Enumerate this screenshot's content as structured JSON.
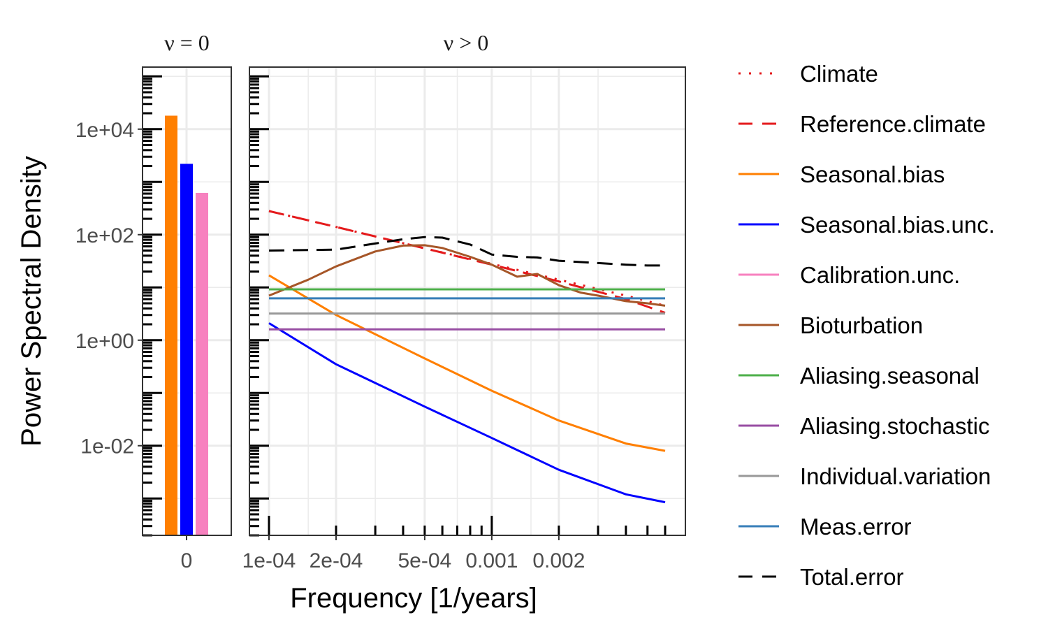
{
  "chart_data": {
    "type": "line",
    "ylabel": "Power Spectral Density",
    "xlabel": "Frequency [1/years]",
    "y_scale": "log10",
    "x_scale": "log10",
    "ylim": [
      0.0002,
      150000
    ],
    "grid": true,
    "legend_position": "right",
    "y_ticks": [
      {
        "value": 10000,
        "label": "1e+04"
      },
      {
        "value": 100,
        "label": "1e+02"
      },
      {
        "value": 1,
        "label": "1e+00"
      },
      {
        "value": 0.01,
        "label": "1e-02"
      }
    ],
    "panels": [
      {
        "strip": "ν = 0",
        "type": "bar",
        "x_ticks": [
          {
            "value": 0,
            "label": "0"
          }
        ],
        "bars": [
          {
            "series": "Seasonal.bias",
            "value": 18000
          },
          {
            "series": "Seasonal.bias.unc.",
            "value": 2200
          },
          {
            "series": "Calibration.unc.",
            "value": 620
          }
        ]
      },
      {
        "strip": "ν > 0",
        "type": "line",
        "xlim": [
          0.0001,
          0.006
        ],
        "x_ticks": [
          {
            "value": 0.0001,
            "label": "1e-04"
          },
          {
            "value": 0.0002,
            "label": "2e-04"
          },
          {
            "value": 0.0005,
            "label": "5e-04"
          },
          {
            "value": 0.001,
            "label": "0.001"
          },
          {
            "value": 0.002,
            "label": "0.002"
          }
        ],
        "series": [
          {
            "name": "Climate",
            "color": "#E41A1C",
            "dash": "dotted",
            "x": [
              0.0001,
              0.0002,
              0.0005,
              0.001,
              0.002,
              0.004,
              0.006
            ],
            "y": [
              280,
              140,
              55,
              28,
              14,
              7,
              4.5
            ]
          },
          {
            "name": "Reference.climate",
            "color": "#E41A1C",
            "dash": "dashed",
            "x": [
              0.0001,
              0.0002,
              0.0005,
              0.001,
              0.002,
              0.004,
              0.006
            ],
            "y": [
              280,
              140,
              55,
              27,
              13,
              6,
              3.3
            ]
          },
          {
            "name": "Seasonal.bias",
            "color": "#FF7F00",
            "dash": "solid",
            "x": [
              0.0001,
              0.0002,
              0.0005,
              0.001,
              0.002,
              0.004,
              0.006
            ],
            "y": [
              17,
              3,
              0.45,
              0.11,
              0.03,
              0.011,
              0.008
            ]
          },
          {
            "name": "Seasonal.bias.unc.",
            "color": "#0000FF",
            "dash": "solid",
            "x": [
              0.0001,
              0.0002,
              0.0005,
              0.001,
              0.002,
              0.004,
              0.006
            ],
            "y": [
              2.1,
              0.35,
              0.055,
              0.014,
              0.0035,
              0.0012,
              0.00085
            ]
          },
          {
            "name": "Calibration.unc.",
            "color": "#F781BF",
            "dash": "solid",
            "x": [],
            "y": []
          },
          {
            "name": "Bioturbation",
            "color": "#A65628",
            "dash": "solid",
            "x": [
              0.0001,
              0.00015,
              0.0002,
              0.0003,
              0.0004,
              0.0005,
              0.0006,
              0.0008,
              0.001,
              0.0013,
              0.0016,
              0.002,
              0.0025,
              0.003,
              0.004,
              0.005,
              0.006
            ],
            "y": [
              7,
              14,
              25,
              48,
              62,
              63,
              56,
              38,
              27,
              16,
              18,
              11,
              8,
              7,
              5.5,
              5,
              4.5
            ]
          },
          {
            "name": "Aliasing.seasonal",
            "color": "#4DAF4A",
            "dash": "solid",
            "x": [
              0.0001,
              0.006
            ],
            "y": [
              9.2,
              9.2
            ]
          },
          {
            "name": "Aliasing.stochastic",
            "color": "#984EA3",
            "dash": "solid",
            "x": [
              0.0001,
              0.006
            ],
            "y": [
              1.6,
              1.6
            ]
          },
          {
            "name": "Individual.variation",
            "color": "#999999",
            "dash": "solid",
            "x": [
              0.0001,
              0.006
            ],
            "y": [
              3.2,
              3.2
            ]
          },
          {
            "name": "Meas.error",
            "color": "#377EB8",
            "dash": "solid",
            "x": [
              0.0001,
              0.006
            ],
            "y": [
              6.2,
              6.2
            ]
          },
          {
            "name": "Total.error",
            "color": "#000000",
            "dash": "dashed",
            "x": [
              0.0001,
              0.0002,
              0.0003,
              0.0004,
              0.0005,
              0.0006,
              0.0008,
              0.001,
              0.0013,
              0.0016,
              0.002,
              0.003,
              0.004,
              0.005,
              0.006
            ],
            "y": [
              50,
              52,
              68,
              82,
              90,
              88,
              65,
              42,
              38,
              37,
              32,
              29,
              27,
              26,
              26
            ]
          }
        ]
      }
    ],
    "legend": [
      {
        "label": "Climate",
        "color": "#E41A1C",
        "dash": "dotted"
      },
      {
        "label": "Reference.climate",
        "color": "#E41A1C",
        "dash": "dashed"
      },
      {
        "label": "Seasonal.bias",
        "color": "#FF7F00",
        "dash": "solid"
      },
      {
        "label": "Seasonal.bias.unc.",
        "color": "#0000FF",
        "dash": "solid"
      },
      {
        "label": "Calibration.unc.",
        "color": "#F781BF",
        "dash": "solid"
      },
      {
        "label": "Bioturbation",
        "color": "#A65628",
        "dash": "solid"
      },
      {
        "label": "Aliasing.seasonal",
        "color": "#4DAF4A",
        "dash": "solid"
      },
      {
        "label": "Aliasing.stochastic",
        "color": "#984EA3",
        "dash": "solid"
      },
      {
        "label": "Individual.variation",
        "color": "#999999",
        "dash": "solid"
      },
      {
        "label": "Meas.error",
        "color": "#377EB8",
        "dash": "solid"
      },
      {
        "label": "Total.error",
        "color": "#000000",
        "dash": "dashed"
      }
    ]
  }
}
